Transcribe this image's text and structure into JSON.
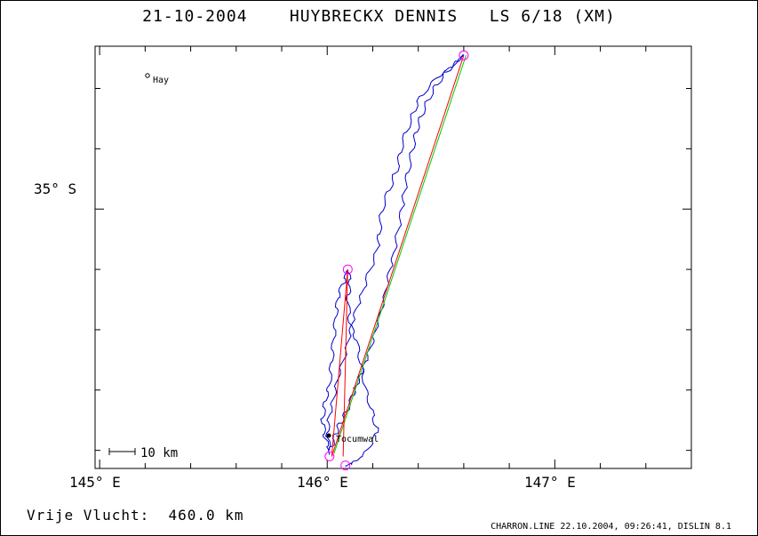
{
  "title": "21-10-2004    HUYBRECKX DENNIS   LS 6/18 (XM)",
  "axes": {
    "x_labels": [
      "145° E",
      "146° E",
      "147° E"
    ],
    "y_labels": [
      "35° S"
    ]
  },
  "places": [
    {
      "name": "Hay",
      "lon": 145.24,
      "lat": -34.55
    },
    {
      "name": "Tocumwal",
      "lon": 146.02,
      "lat": -35.82
    }
  ],
  "scale_bar": {
    "label": "10 km",
    "km": 10
  },
  "free_flight": "Vrije Vlucht:  460.0 km",
  "footer": "CHARRON.LINE 22.10.2004, 09:26:41, DISLIN 8.1",
  "colors": {
    "track": "#0000cc",
    "leg_line": "#ff0000",
    "optimal_line": "#00cc00",
    "turnpoint": "#ff00ff",
    "frame": "#000000"
  },
  "chart_data": {
    "type": "map",
    "lon_range": [
      144.98,
      147.6
    ],
    "lat_range": [
      -35.86,
      -34.46
    ],
    "turnpoints": [
      {
        "lon": 146.6,
        "lat": -34.49
      },
      {
        "lon": 146.09,
        "lat": -35.2
      },
      {
        "lon": 146.08,
        "lat": -35.85
      },
      {
        "lon": 146.01,
        "lat": -35.82
      }
    ],
    "red_legs": [
      [
        [
          146.02,
          -35.82
        ],
        [
          146.6,
          -34.49
        ]
      ],
      [
        [
          146.09,
          -35.2
        ],
        [
          146.02,
          -35.82
        ]
      ],
      [
        [
          146.07,
          -35.82
        ],
        [
          146.09,
          -35.2
        ]
      ]
    ],
    "green_leg": [
      [
        146.03,
        -35.81
      ],
      [
        146.61,
        -34.49
      ]
    ],
    "tracks": [
      [
        [
          146.01,
          -35.81
        ],
        [
          146.03,
          -35.76
        ],
        [
          146.05,
          -35.72
        ],
        [
          146.08,
          -35.68
        ],
        [
          146.11,
          -35.62
        ],
        [
          146.13,
          -35.58
        ],
        [
          146.15,
          -35.54
        ],
        [
          146.17,
          -35.5
        ],
        [
          146.2,
          -35.44
        ],
        [
          146.22,
          -35.38
        ],
        [
          146.25,
          -35.3
        ],
        [
          146.27,
          -35.22
        ],
        [
          146.29,
          -35.16
        ],
        [
          146.31,
          -35.08
        ],
        [
          146.33,
          -35.0
        ],
        [
          146.34,
          -34.94
        ],
        [
          146.36,
          -34.86
        ],
        [
          146.38,
          -34.78
        ],
        [
          146.4,
          -34.72
        ],
        [
          146.43,
          -34.66
        ],
        [
          146.47,
          -34.6
        ],
        [
          146.52,
          -34.55
        ],
        [
          146.57,
          -34.51
        ],
        [
          146.6,
          -34.49
        ]
      ],
      [
        [
          146.6,
          -34.49
        ],
        [
          146.54,
          -34.53
        ],
        [
          146.47,
          -34.57
        ],
        [
          146.4,
          -34.64
        ],
        [
          146.37,
          -34.7
        ],
        [
          146.33,
          -34.78
        ],
        [
          146.31,
          -34.86
        ],
        [
          146.28,
          -34.92
        ],
        [
          146.24,
          -35.0
        ],
        [
          146.23,
          -35.08
        ],
        [
          146.22,
          -35.14
        ],
        [
          146.18,
          -35.22
        ],
        [
          146.15,
          -35.29
        ],
        [
          146.12,
          -35.35
        ],
        [
          146.1,
          -35.41
        ],
        [
          146.08,
          -35.48
        ],
        [
          146.05,
          -35.55
        ],
        [
          146.03,
          -35.62
        ],
        [
          146.01,
          -35.68
        ],
        [
          146.0,
          -35.74
        ],
        [
          146.01,
          -35.8
        ]
      ],
      [
        [
          146.01,
          -35.8
        ],
        [
          145.99,
          -35.76
        ],
        [
          145.98,
          -35.7
        ],
        [
          145.99,
          -35.64
        ],
        [
          146.01,
          -35.58
        ],
        [
          146.02,
          -35.5
        ],
        [
          146.03,
          -35.42
        ],
        [
          146.04,
          -35.34
        ],
        [
          146.05,
          -35.28
        ],
        [
          146.08,
          -35.23
        ],
        [
          146.09,
          -35.2
        ]
      ],
      [
        [
          146.09,
          -35.2
        ],
        [
          146.1,
          -35.24
        ],
        [
          146.09,
          -35.3
        ],
        [
          146.1,
          -35.38
        ],
        [
          146.13,
          -35.44
        ],
        [
          146.15,
          -35.52
        ],
        [
          146.17,
          -35.6
        ],
        [
          146.2,
          -35.68
        ],
        [
          146.22,
          -35.74
        ],
        [
          146.18,
          -35.8
        ],
        [
          146.12,
          -35.84
        ],
        [
          146.08,
          -35.85
        ]
      ]
    ]
  }
}
